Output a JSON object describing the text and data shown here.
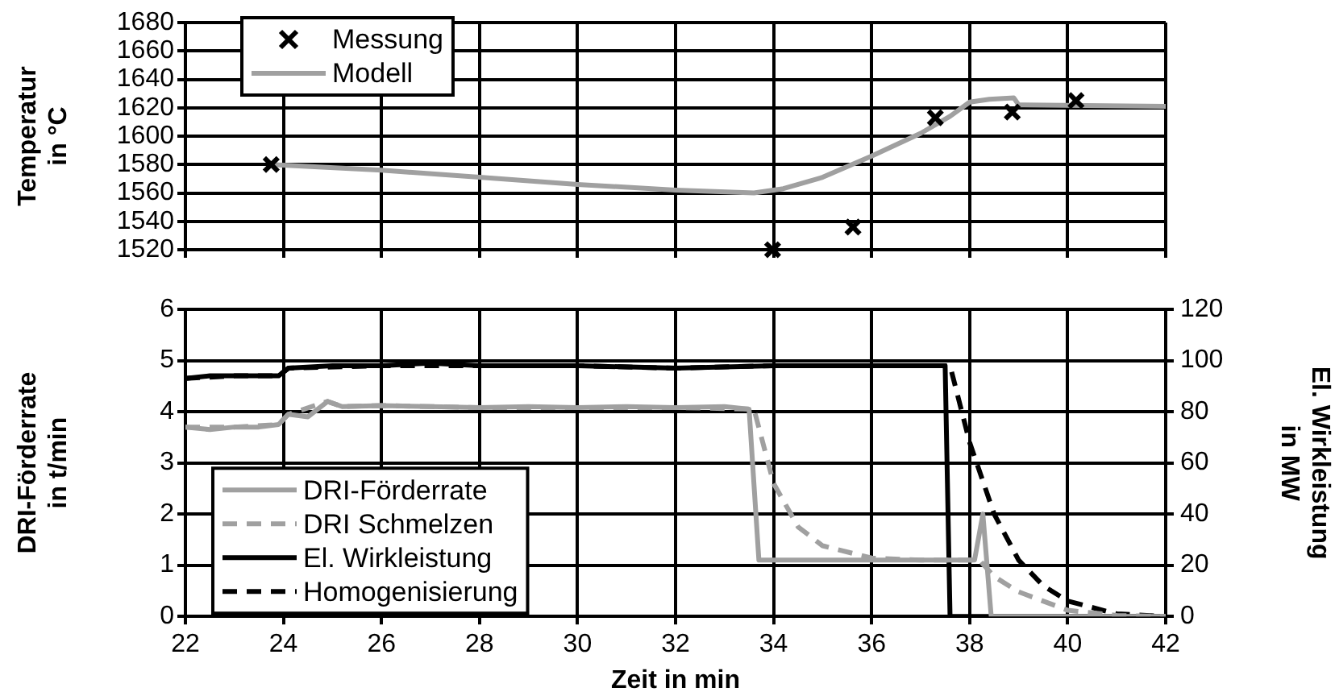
{
  "chart_data": [
    {
      "type": "scatter",
      "ylabel": "Temperatur\nin °C",
      "xlim": [
        22,
        42
      ],
      "xticks": [
        22,
        24,
        26,
        28,
        30,
        32,
        34,
        36,
        38,
        40,
        42
      ],
      "ylim": [
        1520,
        1680
      ],
      "yticks": [
        1520,
        1540,
        1560,
        1580,
        1600,
        1620,
        1640,
        1660,
        1680
      ],
      "tick_labels": "y",
      "grid": true,
      "legend": "top left",
      "series": [
        {
          "name": "Messung",
          "marker": "cross",
          "color": "#000000",
          "x": [
            23.75,
            33.98,
            35.62,
            37.3,
            38.87,
            40.17
          ],
          "values": [
            1580,
            1520,
            1536,
            1613,
            1617,
            1625
          ]
        },
        {
          "name": "Modell",
          "type": "line",
          "line_style": "solid",
          "color": "#a0a0a0",
          "x": [
            23.75,
            26,
            28,
            30,
            32,
            33.6,
            34.2,
            35,
            36,
            37,
            37.6,
            38,
            38.4,
            38.9,
            39,
            42
          ],
          "values": [
            1580,
            1576,
            1571,
            1566,
            1562,
            1560,
            1563,
            1571,
            1586,
            1602,
            1614,
            1624,
            1626,
            1627,
            1622,
            1621
          ]
        }
      ]
    },
    {
      "type": "line",
      "xlabel": "Zeit in min",
      "ylabel": "DRI-Förderrate\nin t/min",
      "y2label": "El. Wirkleistung\nin MW",
      "xlim": [
        22,
        42
      ],
      "xticks": [
        22,
        24,
        26,
        28,
        30,
        32,
        34,
        36,
        38,
        40,
        42
      ],
      "ylim": [
        0,
        6
      ],
      "yticks": [
        0,
        1,
        2,
        3,
        4,
        5,
        6
      ],
      "y2lim": [
        0,
        120
      ],
      "y2ticks": [
        0,
        20,
        40,
        60,
        80,
        100,
        120
      ],
      "grid": true,
      "legend": "bottom left",
      "series": [
        {
          "name": "DRI-Förderrate",
          "line_style": "solid",
          "color": "#a0a0a0",
          "x": [
            22,
            22.5,
            23,
            23.5,
            23.9,
            24.1,
            24.5,
            24.9,
            25.2,
            26,
            27,
            28,
            29,
            30,
            31,
            32,
            33,
            33.5,
            33.7,
            34,
            36,
            38,
            38.1,
            38.27,
            38.44,
            39,
            42
          ],
          "values": [
            3.7,
            3.65,
            3.7,
            3.7,
            3.75,
            3.95,
            3.9,
            4.2,
            4.1,
            4.12,
            4.1,
            4.08,
            4.1,
            4.08,
            4.1,
            4.08,
            4.1,
            4.05,
            1.1,
            1.1,
            1.1,
            1.1,
            1.1,
            2.0,
            0,
            0,
            0
          ]
        },
        {
          "name": "DRI Schmelzen",
          "line_style": "dashed",
          "color": "#a0a0a0",
          "x": [
            22,
            23,
            23.9,
            24.1,
            24.9,
            25.2,
            26,
            28,
            30,
            32,
            33.6,
            34,
            34.5,
            35,
            36,
            37,
            38.2,
            38.5,
            39,
            40,
            41,
            42
          ],
          "values": [
            3.7,
            3.7,
            3.75,
            3.95,
            4.2,
            4.1,
            4.12,
            4.08,
            4.08,
            4.08,
            4.05,
            2.6,
            1.75,
            1.38,
            1.14,
            1.1,
            1.1,
            0.78,
            0.48,
            0.12,
            0.02,
            0
          ]
        },
        {
          "name": "El. Wirkleistung",
          "line_style": "solid",
          "axis": "y2",
          "color": "#000000",
          "x": [
            22,
            22.5,
            23,
            23.5,
            23.9,
            24.1,
            25,
            26,
            27,
            28,
            30,
            32,
            34,
            36,
            37.5,
            37.6,
            38,
            42
          ],
          "values": [
            93,
            94,
            94,
            94,
            94,
            97,
            98,
            98,
            99,
            98,
            98,
            97,
            98,
            98,
            98,
            0,
            0,
            0
          ]
        },
        {
          "name": "Homogenisierung",
          "line_style": "dashed",
          "axis": "y2",
          "color": "#000000",
          "x": [
            22,
            23,
            23.9,
            24.1,
            26,
            28,
            30,
            32,
            34,
            36,
            37.6,
            38,
            38.5,
            39,
            39.5,
            40,
            41,
            42
          ],
          "values": [
            93,
            94,
            94,
            97,
            98,
            98,
            98,
            97,
            98,
            98,
            98,
            68,
            40,
            22,
            12,
            6,
            1,
            0
          ]
        }
      ]
    }
  ]
}
